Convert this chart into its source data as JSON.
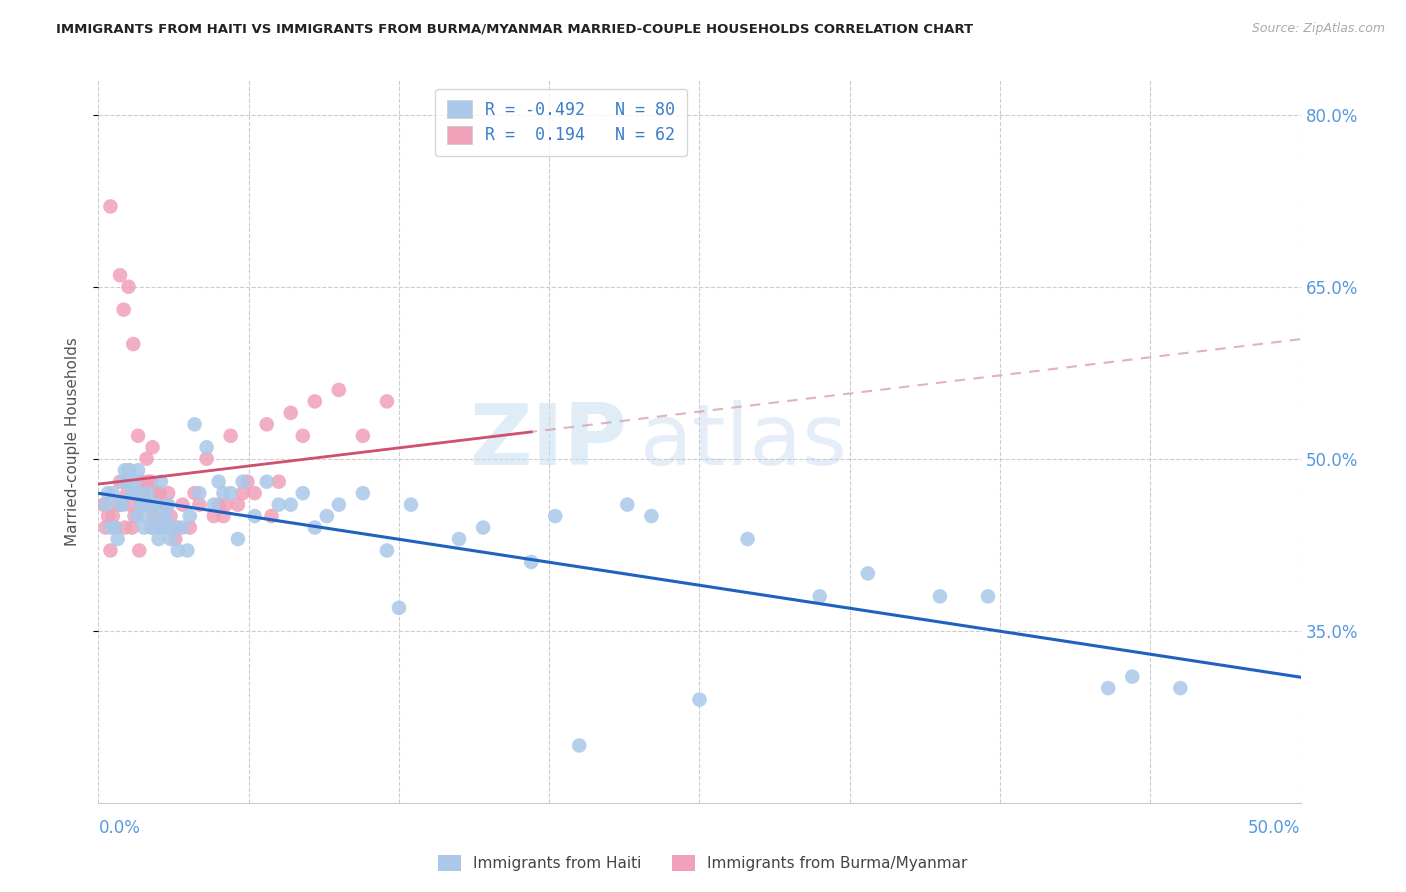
{
  "title": "IMMIGRANTS FROM HAITI VS IMMIGRANTS FROM BURMA/MYANMAR MARRIED-COUPLE HOUSEHOLDS CORRELATION CHART",
  "source": "Source: ZipAtlas.com",
  "ylabel": "Married-couple Households",
  "haiti_R": -0.492,
  "haiti_N": 80,
  "burma_R": 0.194,
  "burma_N": 62,
  "haiti_color": "#aac8e8",
  "burma_color": "#f0a0b8",
  "haiti_line_color": "#2060c0",
  "burma_line_solid_color": "#d05070",
  "burma_line_dash_color": "#d8a0b0",
  "right_ytick_vals": [
    35.0,
    50.0,
    65.0,
    80.0
  ],
  "xmin": 0.0,
  "xmax": 50.0,
  "ymin": 20.0,
  "ymax": 83.0,
  "haiti_scatter_x": [
    0.3,
    0.5,
    0.6,
    0.7,
    0.8,
    0.9,
    1.0,
    1.1,
    1.2,
    1.3,
    1.4,
    1.5,
    1.6,
    1.7,
    1.8,
    1.9,
    2.0,
    2.1,
    2.2,
    2.3,
    2.4,
    2.5,
    2.6,
    2.7,
    2.8,
    2.9,
    3.0,
    3.1,
    3.2,
    3.3,
    3.5,
    3.7,
    3.8,
    4.0,
    4.2,
    4.5,
    4.8,
    5.0,
    5.2,
    5.5,
    5.8,
    6.0,
    6.5,
    7.0,
    7.5,
    8.0,
    8.5,
    9.0,
    9.5,
    10.0,
    11.0,
    12.0,
    12.5,
    13.0,
    15.0,
    16.0,
    18.0,
    19.0,
    20.0,
    22.0,
    23.0,
    25.0,
    27.0,
    30.0,
    32.0,
    35.0,
    37.0,
    42.0,
    43.0,
    45.0,
    0.4,
    1.05,
    1.25,
    1.45,
    1.65,
    1.85,
    2.05,
    2.25,
    2.55,
    2.75
  ],
  "haiti_scatter_y": [
    46,
    44,
    47,
    44,
    43,
    46,
    46,
    49,
    48,
    49,
    47,
    48,
    45,
    47,
    46,
    44,
    45,
    46,
    44,
    46,
    46,
    43,
    48,
    44,
    45,
    46,
    43,
    44,
    44,
    42,
    44,
    42,
    45,
    53,
    47,
    51,
    46,
    48,
    47,
    47,
    43,
    48,
    45,
    48,
    46,
    46,
    47,
    44,
    45,
    46,
    47,
    42,
    37,
    46,
    43,
    44,
    41,
    45,
    25,
    46,
    45,
    29,
    43,
    38,
    40,
    38,
    38,
    30,
    31,
    30,
    47,
    48,
    49,
    47,
    49,
    46,
    47,
    44,
    45,
    44
  ],
  "burma_scatter_x": [
    0.2,
    0.3,
    0.4,
    0.5,
    0.6,
    0.7,
    0.8,
    0.9,
    1.0,
    1.1,
    1.2,
    1.3,
    1.4,
    1.5,
    1.6,
    1.7,
    1.8,
    1.9,
    2.0,
    2.1,
    2.2,
    2.3,
    2.5,
    2.6,
    2.8,
    2.9,
    3.0,
    3.2,
    3.5,
    3.8,
    4.0,
    4.2,
    4.5,
    4.8,
    5.0,
    5.2,
    5.3,
    5.5,
    5.8,
    6.0,
    6.2,
    6.5,
    7.0,
    7.2,
    7.5,
    8.0,
    8.5,
    9.0,
    10.0,
    11.0,
    12.0,
    0.5,
    0.9,
    1.05,
    1.25,
    1.45,
    1.65,
    1.85,
    2.05,
    2.25,
    2.55,
    3.3
  ],
  "burma_scatter_y": [
    46,
    44,
    45,
    42,
    45,
    44,
    46,
    48,
    46,
    44,
    47,
    46,
    44,
    45,
    47,
    42,
    48,
    47,
    50,
    46,
    48,
    45,
    47,
    44,
    46,
    47,
    45,
    43,
    46,
    44,
    47,
    46,
    50,
    45,
    46,
    45,
    46,
    52,
    46,
    47,
    48,
    47,
    53,
    45,
    48,
    54,
    52,
    55,
    56,
    52,
    55,
    72,
    66,
    63,
    65,
    60,
    52,
    47,
    48,
    51,
    47,
    44
  ]
}
